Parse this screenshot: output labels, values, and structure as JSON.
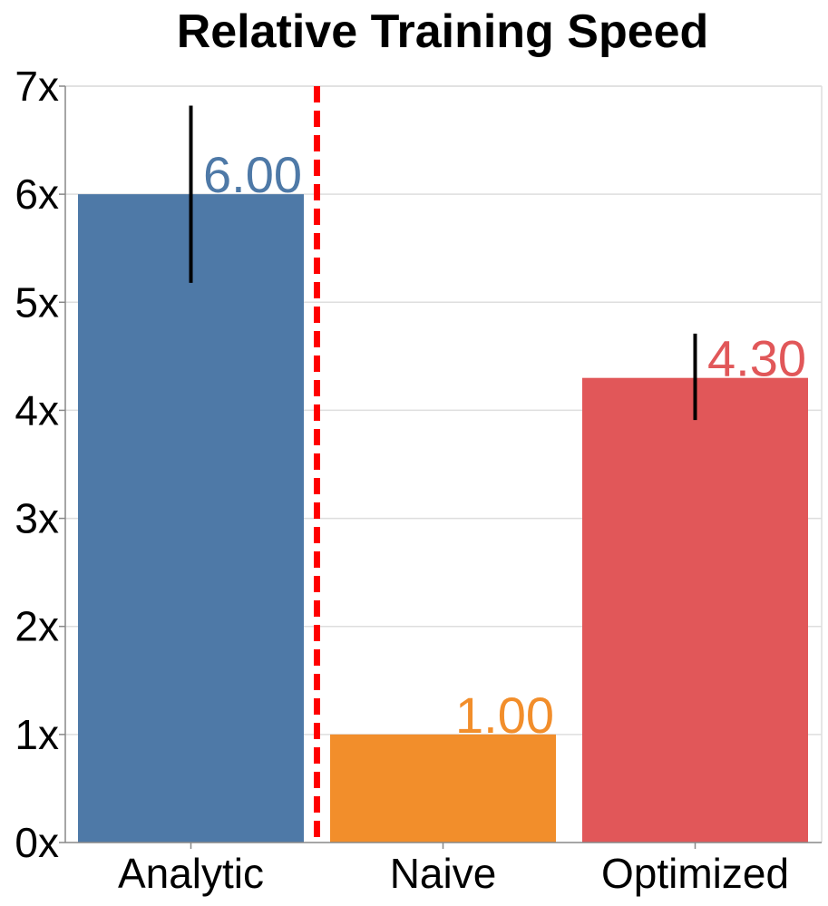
{
  "chart_data": {
    "type": "bar",
    "title": "Relative Training Speed",
    "categories": [
      "Analytic",
      "Naive",
      "Optimized"
    ],
    "values": [
      6.0,
      1.0,
      4.3
    ],
    "value_labels": [
      "6.00",
      "1.00",
      "4.30"
    ],
    "error_bars": [
      {
        "low": 5.18,
        "high": 6.82
      },
      null,
      {
        "low": 3.91,
        "high": 4.71
      }
    ],
    "colors": [
      "#4e79a7",
      "#f28e2b",
      "#e15759"
    ],
    "ylim": [
      0,
      7
    ],
    "yticks": [
      0,
      1,
      2,
      3,
      4,
      5,
      6,
      7
    ],
    "ytick_labels": [
      "0x",
      "1x",
      "2x",
      "3x",
      "4x",
      "5x",
      "6x",
      "7x"
    ],
    "xlabel": "",
    "ylabel": "",
    "grid": true,
    "divider": {
      "after_category": "Analytic",
      "color": "#ff0000",
      "style": "dashed"
    }
  }
}
